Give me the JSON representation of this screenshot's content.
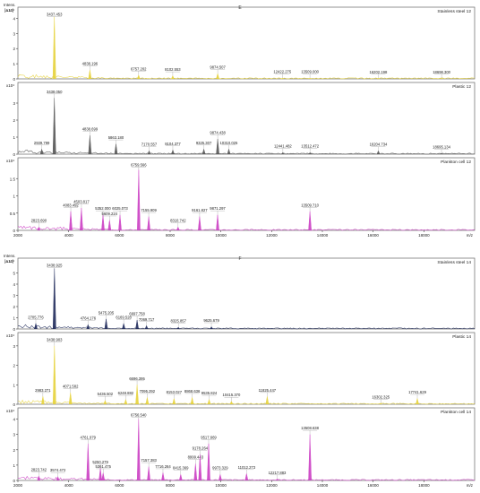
{
  "figure": {
    "intens_label": "Intens.",
    "unit_label": "[a.u.]",
    "mz_label": "m/z"
  },
  "chart_data": [
    {
      "type": "line",
      "figure_label": "E",
      "title": "Stainless steel 12",
      "color": "#e6d23a",
      "exponent": "x10⁴",
      "ylim": [
        0,
        4.5
      ],
      "xlim": [
        2000,
        20000
      ],
      "y_ticks": [
        0,
        1,
        2,
        3,
        4
      ],
      "x_ticks": [],
      "peaks": [
        {
          "mz": 3437.453,
          "h": 4.1,
          "label": "3437.453"
        },
        {
          "mz": 4838.196,
          "h": 0.6,
          "label": "4838.196"
        },
        {
          "mz": 6757.202,
          "h": 0.25,
          "label": "6757.202"
        },
        {
          "mz": 8102.553,
          "h": 0.2,
          "label": "8102.553"
        },
        {
          "mz": 9874.507,
          "h": 0.35,
          "label": "9874.507"
        },
        {
          "mz": 12422.275,
          "h": 0.05,
          "label": "12422.275"
        },
        {
          "mz": 13509.0,
          "h": 0.05,
          "label": "13509.000"
        },
        {
          "mz": 16202.198,
          "h": 0.04,
          "label": "16202.198"
        },
        {
          "mz": 18698.3,
          "h": 0.04,
          "label": "18698.300"
        }
      ]
    },
    {
      "type": "line",
      "title": "Plastic 12",
      "color": "#555555",
      "exponent": "x10⁴",
      "ylim": [
        0,
        4
      ],
      "xlim": [
        2000,
        20000
      ],
      "y_ticks": [
        0,
        1,
        2,
        3
      ],
      "x_ticks": [],
      "peaks": [
        {
          "mz": 2939.799,
          "h": 0.3,
          "label": "2939.799"
        },
        {
          "mz": 3438.05,
          "h": 3.3,
          "label": "3438.050"
        },
        {
          "mz": 4838.699,
          "h": 1.1,
          "label": "4838.699"
        },
        {
          "mz": 5863.18,
          "h": 0.6,
          "label": "5863.180"
        },
        {
          "mz": 7170.557,
          "h": 0.2,
          "label": "7170.557"
        },
        {
          "mz": 8104.377,
          "h": 0.25,
          "label": "8104.377"
        },
        {
          "mz": 9325.307,
          "h": 0.3,
          "label": "9325.307"
        },
        {
          "mz": 9874.438,
          "h": 0.9,
          "label": "9874.438"
        },
        {
          "mz": 10310.025,
          "h": 0.3,
          "label": "10310.025"
        },
        {
          "mz": 12441.482,
          "h": 0.1,
          "label": "12441.482"
        },
        {
          "mz": 13512.472,
          "h": 0.1,
          "label": "13512.472"
        },
        {
          "mz": 16204.734,
          "h": 0.2,
          "label": "16204.734"
        },
        {
          "mz": 18695.134,
          "h": 0.05,
          "label": "18695.134"
        }
      ]
    },
    {
      "type": "line",
      "title": "Plankton cell 12",
      "color": "#cc3fc4",
      "exponent": "x10⁴",
      "ylim": [
        0,
        2.0
      ],
      "xlim": [
        2000,
        20000
      ],
      "y_ticks": [
        0.0,
        0.5,
        1.0,
        1.5
      ],
      "x_ticks": [
        2000,
        4000,
        6000,
        8000,
        10000,
        12000,
        14000,
        16000,
        18000
      ],
      "peaks": [
        {
          "mz": 2823.69,
          "h": 0.1,
          "label": "2823.690"
        },
        {
          "mz": 4083.492,
          "h": 0.55,
          "label": "4083.492"
        },
        {
          "mz": 4503.817,
          "h": 0.65,
          "label": "4503.817"
        },
        {
          "mz": 5352.0,
          "h": 0.45,
          "label": "5352.000"
        },
        {
          "mz": 5609.224,
          "h": 0.3,
          "label": "5609.224"
        },
        {
          "mz": 6025.073,
          "h": 0.45,
          "label": "6025.073"
        },
        {
          "mz": 6759.566,
          "h": 1.75,
          "label": "6759.566"
        },
        {
          "mz": 7155.909,
          "h": 0.4,
          "label": "7155.909"
        },
        {
          "mz": 8310.742,
          "h": 0.1,
          "label": "8310.742"
        },
        {
          "mz": 9161.827,
          "h": 0.4,
          "label": "9161.827"
        },
        {
          "mz": 9871.297,
          "h": 0.45,
          "label": "9871.297"
        },
        {
          "mz": 13509.71,
          "h": 0.55,
          "label": "13509.710"
        }
      ]
    },
    {
      "type": "line",
      "figure_label": "F",
      "title": "Stainless steel 14",
      "color": "#1f2a5a",
      "exponent": "x10⁴",
      "ylim": [
        0,
        6
      ],
      "xlim": [
        2000,
        20000
      ],
      "y_ticks": [
        0,
        1,
        2,
        3,
        4,
        5
      ],
      "x_ticks": [],
      "peaks": [
        {
          "mz": 2705.776,
          "h": 0.5,
          "label": "2705.776"
        },
        {
          "mz": 3438.925,
          "h": 5.4,
          "label": "3438.925"
        },
        {
          "mz": 4764.176,
          "h": 0.4,
          "label": "4764.176"
        },
        {
          "mz": 5475.205,
          "h": 0.9,
          "label": "5475.205"
        },
        {
          "mz": 6169.528,
          "h": 0.5,
          "label": "6169.528"
        },
        {
          "mz": 6697.758,
          "h": 0.8,
          "label": "6697.758"
        },
        {
          "mz": 7069.717,
          "h": 0.3,
          "label": "7069.717"
        },
        {
          "mz": 8325.857,
          "h": 0.15,
          "label": "8325.857"
        },
        {
          "mz": 9625.679,
          "h": 0.2,
          "label": "9625.679"
        }
      ]
    },
    {
      "type": "line",
      "title": "Plastic 14",
      "color": "#e6d23a",
      "exponent": "x10⁴",
      "ylim": [
        0,
        3.5
      ],
      "xlim": [
        2000,
        20000
      ],
      "y_ticks": [
        0,
        1,
        2,
        3
      ],
      "x_ticks": [],
      "peaks": [
        {
          "mz": 2983.271,
          "h": 0.4,
          "label": "2983.271"
        },
        {
          "mz": 3438.903,
          "h": 3.0,
          "label": "3438.903"
        },
        {
          "mz": 4071.582,
          "h": 0.6,
          "label": "4071.582"
        },
        {
          "mz": 5436.502,
          "h": 0.2,
          "label": "5436.502"
        },
        {
          "mz": 6248.882,
          "h": 0.25,
          "label": "6248.882"
        },
        {
          "mz": 6696.395,
          "h": 1.0,
          "label": "6696.395"
        },
        {
          "mz": 7095.292,
          "h": 0.35,
          "label": "7095.292"
        },
        {
          "mz": 8153.027,
          "h": 0.3,
          "label": "8153.027"
        },
        {
          "mz": 8868.636,
          "h": 0.35,
          "label": "8868.636"
        },
        {
          "mz": 9535.824,
          "h": 0.25,
          "label": "9535.824"
        },
        {
          "mz": 10415.37,
          "h": 0.15,
          "label": "10415.370"
        },
        {
          "mz": 11825.447,
          "h": 0.4,
          "label": "11825.447"
        },
        {
          "mz": 16302.325,
          "h": 0.05,
          "label": "16302.325"
        },
        {
          "mz": 17741.629,
          "h": 0.3,
          "label": "17741.629"
        }
      ]
    },
    {
      "type": "line",
      "title": "Plankton cell 14",
      "color": "#cc3fc4",
      "exponent": "x10⁴",
      "ylim": [
        0,
        4.5
      ],
      "xlim": [
        2000,
        20000
      ],
      "y_ticks": [
        0,
        1,
        2,
        3,
        4
      ],
      "x_ticks": [
        2000,
        4000,
        6000,
        8000,
        10000,
        12000,
        14000,
        16000,
        18000
      ],
      "peaks": [
        {
          "mz": 2823.742,
          "h": 0.3,
          "label": "2823.742"
        },
        {
          "mz": 3574.472,
          "h": 0.25,
          "label": "3574.472"
        },
        {
          "mz": 4761.979,
          "h": 2.4,
          "label": "4761.979"
        },
        {
          "mz": 5361.475,
          "h": 0.5,
          "label": "5361.475"
        },
        {
          "mz": 5250.279,
          "h": 0.8,
          "label": "5250.279"
        },
        {
          "mz": 6756.54,
          "h": 4.0,
          "label": "6756.540"
        },
        {
          "mz": 7157.383,
          "h": 0.9,
          "label": "7157.383"
        },
        {
          "mz": 7716.264,
          "h": 0.5,
          "label": "7716.264"
        },
        {
          "mz": 8415.369,
          "h": 0.4,
          "label": "8415.369"
        },
        {
          "mz": 8999.443,
          "h": 1.1,
          "label": "8999.443"
        },
        {
          "mz": 9178.264,
          "h": 1.7,
          "label": "9178.264"
        },
        {
          "mz": 9517.669,
          "h": 2.4,
          "label": "9517.669"
        },
        {
          "mz": 9973.329,
          "h": 0.4,
          "label": "9973.329"
        },
        {
          "mz": 11012.273,
          "h": 0.45,
          "label": "11012.273"
        },
        {
          "mz": 12217.883,
          "h": 0.1,
          "label": "12217.883"
        },
        {
          "mz": 13508.638,
          "h": 3.0,
          "label": "13508.638"
        }
      ]
    }
  ]
}
